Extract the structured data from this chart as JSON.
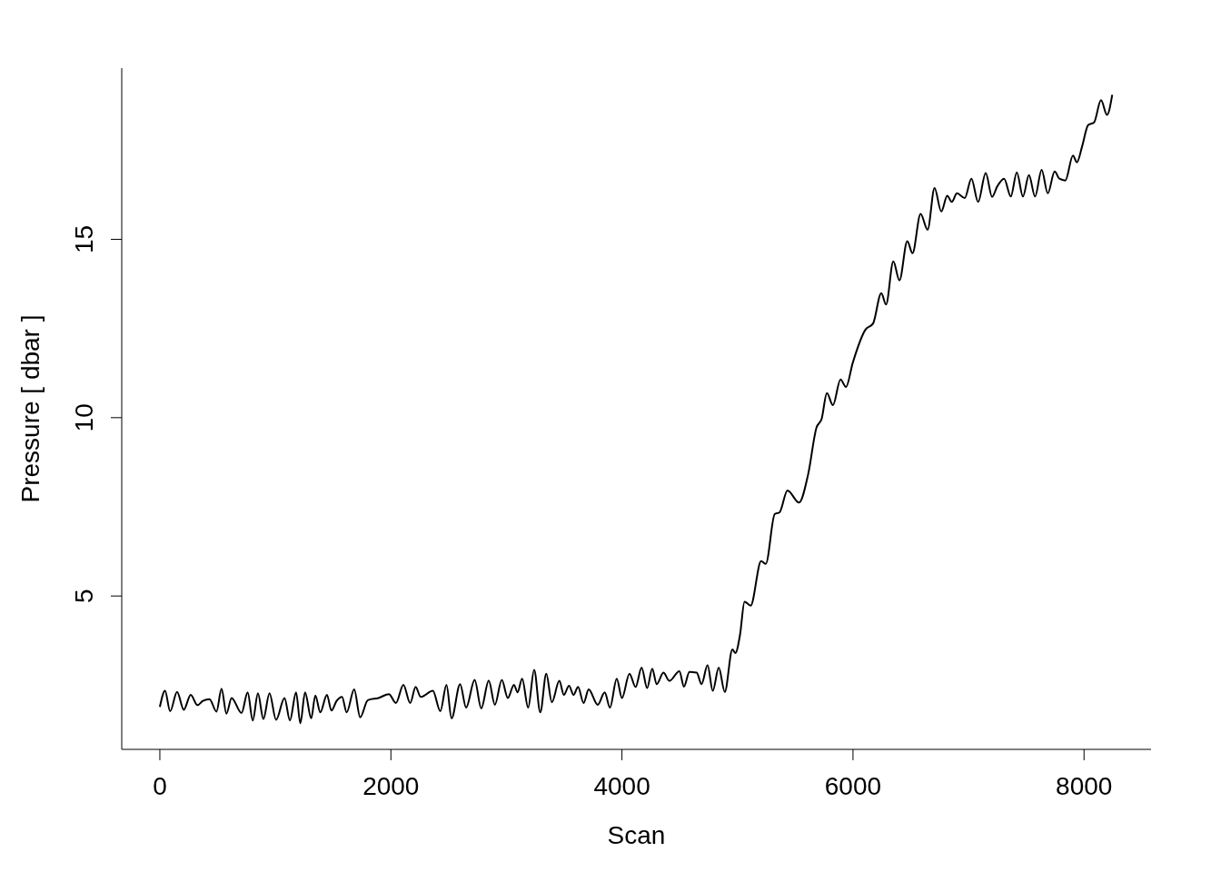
{
  "chart_data": {
    "type": "line",
    "xlabel": "Scan",
    "ylabel": "Pressure [ dbar ]",
    "xlim": [
      -330,
      8580
    ],
    "ylim": [
      0.7,
      19.8
    ],
    "xticks": [
      0,
      2000,
      4000,
      6000,
      8000
    ],
    "yticks": [
      5,
      10,
      15
    ],
    "x": [
      0,
      45,
      89,
      149,
      207,
      267,
      325,
      372,
      430,
      490,
      534,
      576,
      621,
      707,
      760,
      804,
      849,
      896,
      949,
      1006,
      1079,
      1126,
      1179,
      1216,
      1257,
      1310,
      1346,
      1389,
      1446,
      1485,
      1530,
      1577,
      1617,
      1682,
      1734,
      1800,
      1892,
      1983,
      2043,
      2108,
      2167,
      2214,
      2258,
      2363,
      2428,
      2481,
      2525,
      2599,
      2651,
      2725,
      2782,
      2847,
      2900,
      2960,
      3012,
      3065,
      3096,
      3136,
      3188,
      3240,
      3293,
      3345,
      3393,
      3458,
      3497,
      3542,
      3581,
      3620,
      3668,
      3712,
      3790,
      3851,
      3896,
      3955,
      4000,
      4065,
      4118,
      4170,
      4218,
      4262,
      4301,
      4359,
      4411,
      4497,
      4537,
      4584,
      4647,
      4689,
      4741,
      4786,
      4838,
      4890,
      4956,
      4982,
      5022,
      5061,
      5114,
      5205,
      5245,
      5323,
      5363,
      5433,
      5533,
      5611,
      5684,
      5729,
      5774,
      5826,
      5892,
      5939,
      5998,
      6108,
      6174,
      6245,
      6286,
      6349,
      6402,
      6470,
      6515,
      6585,
      6646,
      6706,
      6764,
      6816,
      6855,
      6900,
      6968,
      7025,
      7083,
      7149,
      7204,
      7248,
      7308,
      7366,
      7418,
      7471,
      7523,
      7576,
      7633,
      7686,
      7746,
      7786,
      7838,
      7904,
      7938,
      7983,
      8035,
      8087,
      8147,
      8199,
      8244
    ],
    "series": [
      {
        "color": "#000000",
        "values": [
          1.89,
          2.34,
          1.77,
          2.31,
          1.81,
          2.23,
          1.94,
          2.06,
          2.11,
          1.76,
          2.4,
          1.7,
          2.14,
          1.72,
          2.3,
          1.51,
          2.27,
          1.55,
          2.27,
          1.53,
          2.14,
          1.51,
          2.3,
          1.43,
          2.3,
          1.57,
          2.21,
          1.74,
          2.23,
          1.79,
          2.06,
          2.17,
          1.74,
          2.38,
          1.6,
          2.08,
          2.14,
          2.25,
          2.0,
          2.51,
          2.0,
          2.45,
          2.17,
          2.34,
          1.77,
          2.51,
          1.57,
          2.53,
          1.87,
          2.65,
          1.85,
          2.63,
          1.95,
          2.65,
          2.14,
          2.51,
          2.3,
          2.68,
          1.87,
          2.93,
          1.74,
          2.82,
          2.02,
          2.62,
          2.23,
          2.48,
          2.23,
          2.45,
          2.0,
          2.38,
          1.95,
          2.3,
          1.87,
          2.68,
          2.14,
          2.82,
          2.45,
          2.99,
          2.42,
          2.96,
          2.53,
          2.85,
          2.62,
          2.89,
          2.46,
          2.87,
          2.85,
          2.53,
          3.06,
          2.34,
          2.99,
          2.31,
          3.5,
          3.4,
          3.91,
          4.84,
          4.73,
          5.98,
          5.9,
          7.3,
          7.34,
          7.96,
          7.62,
          8.4,
          9.72,
          9.97,
          10.69,
          10.35,
          11.07,
          10.86,
          11.54,
          12.47,
          12.64,
          13.49,
          13.17,
          14.38,
          13.85,
          14.95,
          14.61,
          15.71,
          15.27,
          16.44,
          15.78,
          16.22,
          16.05,
          16.29,
          16.16,
          16.7,
          16.05,
          16.86,
          16.19,
          16.48,
          16.7,
          16.2,
          16.88,
          16.2,
          16.8,
          16.2,
          16.95,
          16.29,
          16.9,
          16.7,
          16.65,
          17.35,
          17.16,
          17.6,
          18.2,
          18.28,
          18.9,
          18.49,
          19.05
        ]
      }
    ]
  }
}
